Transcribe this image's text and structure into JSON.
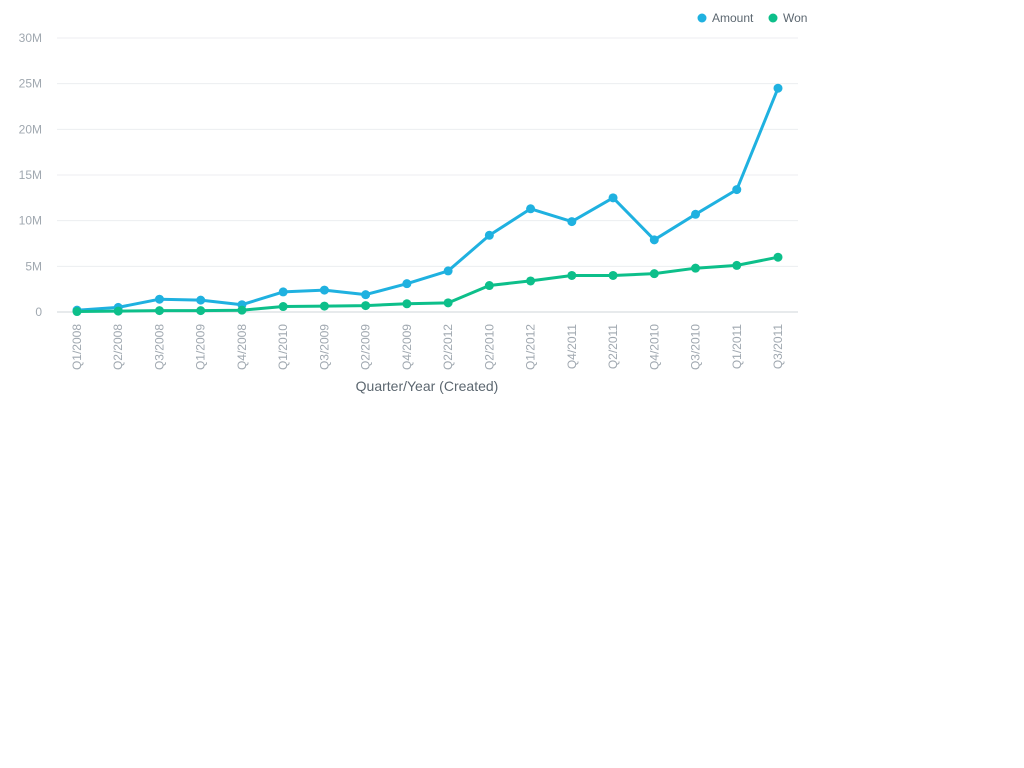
{
  "chart_data": {
    "type": "line",
    "title": "",
    "xlabel": "Quarter/Year (Created)",
    "ylabel": "",
    "ylim": [
      0,
      30000000
    ],
    "yticks": [
      {
        "value": 0,
        "label": "0"
      },
      {
        "value": 5000000,
        "label": "5M"
      },
      {
        "value": 10000000,
        "label": "10M"
      },
      {
        "value": 15000000,
        "label": "15M"
      },
      {
        "value": 20000000,
        "label": "20M"
      },
      {
        "value": 25000000,
        "label": "25M"
      },
      {
        "value": 30000000,
        "label": "30M"
      }
    ],
    "grid": true,
    "legend_position": "top-right",
    "categories": [
      "Q1/2008",
      "Q2/2008",
      "Q3/2008",
      "Q1/2009",
      "Q4/2008",
      "Q1/2010",
      "Q3/2009",
      "Q2/2009",
      "Q4/2009",
      "Q2/2012",
      "Q2/2010",
      "Q1/2012",
      "Q4/2011",
      "Q2/2011",
      "Q4/2010",
      "Q3/2010",
      "Q1/2011",
      "Q3/2011"
    ],
    "series": [
      {
        "name": "Amount",
        "color": "#1fb1e0",
        "values": [
          200000,
          500000,
          1400000,
          1300000,
          800000,
          2200000,
          2400000,
          1900000,
          3100000,
          4500000,
          8400000,
          11300000,
          9900000,
          12500000,
          7900000,
          10700000,
          13400000,
          24500000
        ]
      },
      {
        "name": "Won",
        "color": "#0dbf8a",
        "values": [
          50000,
          100000,
          150000,
          150000,
          200000,
          600000,
          650000,
          700000,
          900000,
          1000000,
          2900000,
          3400000,
          4000000,
          4000000,
          4200000,
          4800000,
          5100000,
          6000000
        ]
      }
    ]
  }
}
